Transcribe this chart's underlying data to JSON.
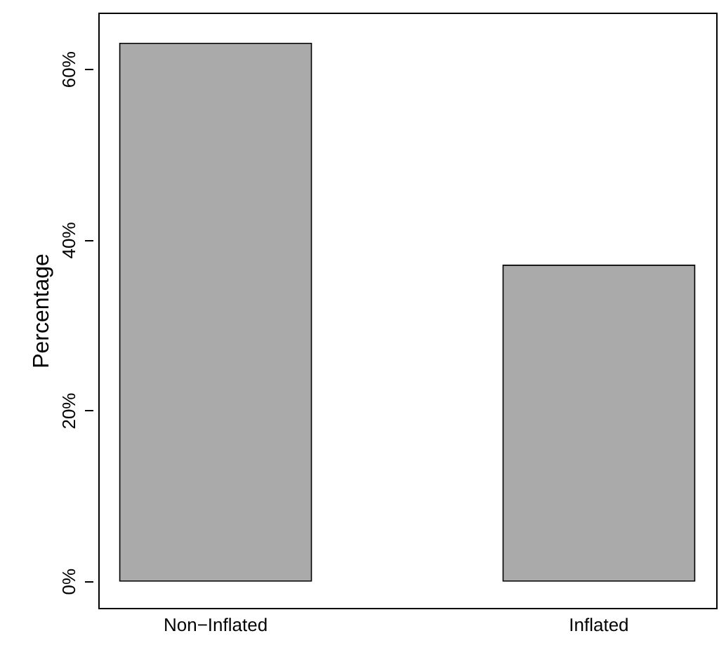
{
  "chart_data": {
    "type": "bar",
    "ylabel": "Percentage",
    "categories": [
      "Non−Inflated",
      "Inflated"
    ],
    "values": [
      63,
      37
    ],
    "color": "#aaaaaa",
    "ylim": [
      -3.15,
      66.6
    ],
    "yticks": [
      {
        "value": 0,
        "label": "0%"
      },
      {
        "value": 20,
        "label": "20%"
      },
      {
        "value": 40,
        "label": "40%"
      },
      {
        "value": 60,
        "label": "60%"
      }
    ],
    "grid": false
  }
}
